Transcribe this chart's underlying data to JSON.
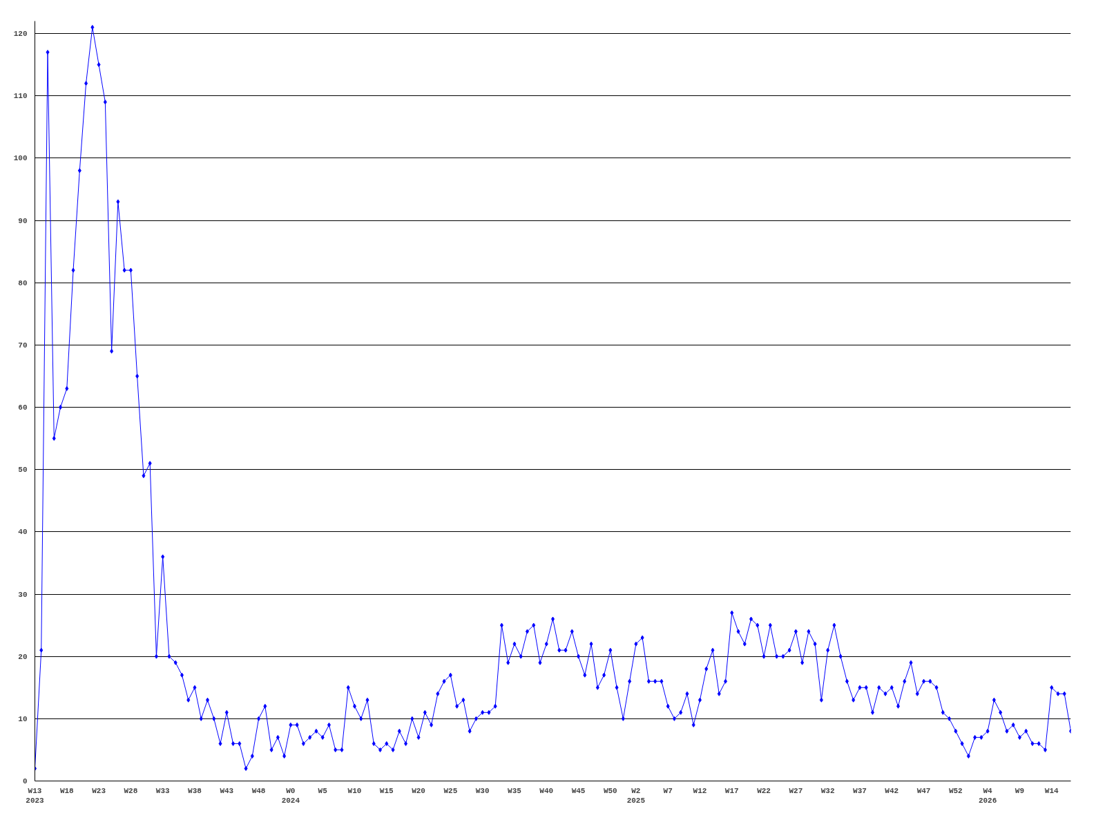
{
  "chart_data": {
    "type": "line",
    "categories": [
      "W13\n2023",
      null,
      null,
      null,
      null,
      "W18",
      null,
      null,
      null,
      null,
      "W23",
      null,
      null,
      null,
      null,
      "W28",
      null,
      null,
      null,
      null,
      "W33",
      null,
      null,
      null,
      null,
      "W38",
      null,
      null,
      null,
      null,
      "W43",
      null,
      null,
      null,
      null,
      "W48",
      null,
      null,
      null,
      null,
      "W0\n2024",
      null,
      null,
      null,
      null,
      "W5",
      null,
      null,
      null,
      null,
      "W10",
      null,
      null,
      null,
      null,
      "W15",
      null,
      null,
      null,
      null,
      "W20",
      null,
      null,
      null,
      null,
      "W25",
      null,
      null,
      null,
      null,
      "W30",
      null,
      null,
      null,
      null,
      "W35",
      null,
      null,
      null,
      null,
      "W40",
      null,
      null,
      null,
      null,
      "W45",
      null,
      null,
      null,
      null,
      "W50",
      null,
      null,
      null,
      "W2\n2025",
      null,
      null,
      null,
      null,
      "W7",
      null,
      null,
      null,
      null,
      "W12",
      null,
      null,
      null,
      null,
      "W17",
      null,
      null,
      null,
      null,
      "W22",
      null,
      null,
      null,
      null,
      "W27",
      null,
      null,
      null,
      null,
      "W32",
      null,
      null,
      null,
      null,
      "W37",
      null,
      null,
      null,
      null,
      "W42",
      null,
      null,
      null,
      null,
      "W47",
      null,
      null,
      null,
      null,
      "W52",
      null,
      null,
      null,
      null,
      "W4\n2026",
      null,
      null,
      null,
      null,
      "W9",
      null,
      null,
      null,
      null,
      "W14",
      null,
      null,
      null
    ],
    "series": [
      {
        "color": "#0000ff",
        "values": [
          2,
          21,
          117,
          55,
          60,
          63,
          82,
          98,
          112,
          121,
          115,
          109,
          69,
          93,
          82,
          82,
          65,
          49,
          51,
          20,
          36,
          20,
          19,
          17,
          13,
          15,
          10,
          13,
          10,
          6,
          11,
          6,
          6,
          2,
          4,
          10,
          12,
          5,
          7,
          4,
          9,
          9,
          6,
          7,
          8,
          7,
          9,
          5,
          5,
          15,
          12,
          10,
          13,
          6,
          5,
          6,
          5,
          8,
          6,
          10,
          7,
          11,
          9,
          14,
          16,
          17,
          12,
          13,
          8,
          10,
          11,
          11,
          12,
          25,
          19,
          22,
          20,
          24,
          25,
          19,
          22,
          26,
          21,
          21,
          24,
          20,
          17,
          22,
          15,
          17,
          21,
          15,
          10,
          16,
          22,
          23,
          16,
          16,
          16,
          12,
          10,
          11,
          14,
          9,
          13,
          18,
          21,
          14,
          16,
          27,
          24,
          22,
          26,
          25,
          20,
          25,
          20,
          20,
          21,
          24,
          19,
          24,
          22,
          13,
          21,
          25,
          20,
          16,
          13,
          15,
          15,
          11,
          15,
          14,
          15,
          12,
          16,
          19,
          14,
          16,
          16,
          15,
          11,
          10,
          8,
          6,
          4,
          7,
          7,
          8,
          13,
          11,
          8,
          9,
          7,
          8,
          6,
          6,
          5,
          15,
          14,
          14,
          8
        ]
      }
    ],
    "ylim": [
      0,
      122
    ],
    "yticks": [
      0,
      10,
      20,
      30,
      40,
      50,
      60,
      70,
      80,
      90,
      100,
      110,
      120
    ],
    "grid": "y",
    "marker": "diamond",
    "line_style": "solid"
  }
}
